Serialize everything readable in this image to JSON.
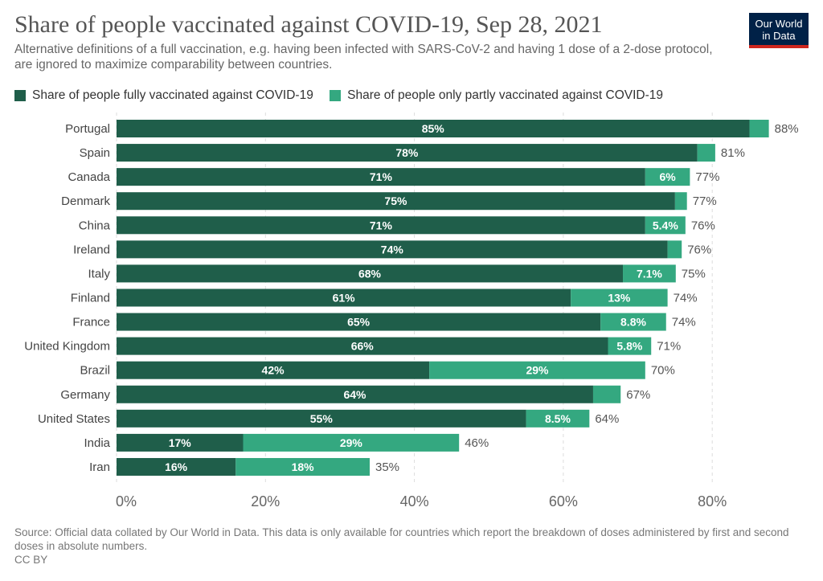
{
  "header": {
    "title": "Share of people vaccinated against COVID-19, Sep 28, 2021",
    "subtitle": "Alternative definitions of a full vaccination, e.g. having been infected with SARS-CoV-2 and having 1 dose of a 2-dose protocol, are ignored to maximize comparability between countries.",
    "logo_line1": "Our World",
    "logo_line2": "in Data"
  },
  "colors": {
    "full": "#1f5e4a",
    "partial": "#34a880",
    "grid": "#dddddd",
    "brand": "#002147",
    "brand_accent": "#ce261e"
  },
  "chart_data": {
    "type": "bar",
    "orientation": "horizontal",
    "stacked": true,
    "categories": [
      "Portugal",
      "Spain",
      "Canada",
      "Denmark",
      "China",
      "Ireland",
      "Italy",
      "Finland",
      "France",
      "United Kingdom",
      "Brazil",
      "Germany",
      "United States",
      "India",
      "Iran"
    ],
    "series": [
      {
        "name": "Share of people fully vaccinated against COVID-19",
        "values": [
          85,
          78,
          71,
          75,
          71,
          74,
          68,
          61,
          65,
          66,
          42,
          64,
          55,
          17,
          16
        ],
        "labels": [
          "85%",
          "78%",
          "71%",
          "75%",
          "71%",
          "74%",
          "68%",
          "61%",
          "65%",
          "66%",
          "42%",
          "64%",
          "55%",
          "17%",
          "16%"
        ]
      },
      {
        "name": "Share of people only partly vaccinated against COVID-19",
        "values": [
          2.6,
          2.4,
          6,
          1.6,
          5.4,
          1.9,
          7.1,
          13,
          8.8,
          5.8,
          29,
          3.7,
          8.5,
          29,
          18
        ],
        "labels": [
          "",
          "",
          "6%",
          "",
          "5.4%",
          "",
          "7.1%",
          "13%",
          "8.8%",
          "5.8%",
          "29%",
          "",
          "8.5%",
          "29%",
          "18%"
        ]
      }
    ],
    "totals": [
      "88%",
      "81%",
      "77%",
      "77%",
      "76%",
      "76%",
      "75%",
      "74%",
      "74%",
      "71%",
      "70%",
      "67%",
      "64%",
      "46%",
      "35%"
    ],
    "xlim": [
      0,
      88
    ],
    "xticks": [
      0,
      20,
      40,
      60,
      80
    ],
    "xtick_labels": [
      "0%",
      "20%",
      "40%",
      "60%",
      "80%"
    ],
    "grid": true,
    "legend_position": "top-left"
  },
  "footer": {
    "source": "Source: Official data collated by Our World in Data. This data is only available for countries which report the breakdown of doses administered by first and second doses in absolute numbers.",
    "license": "CC BY"
  }
}
